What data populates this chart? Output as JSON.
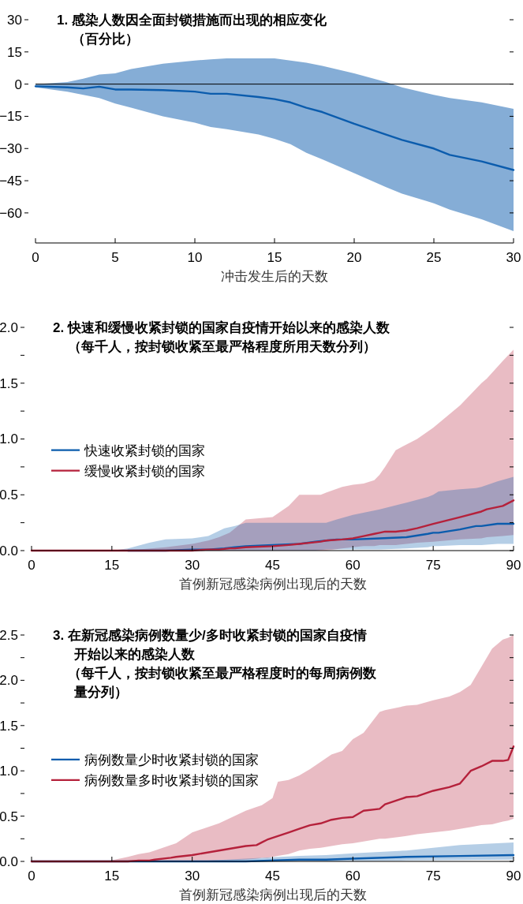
{
  "chart_data": [
    {
      "type": "line",
      "title": "1. 感染人数因全面封锁措施而出现的相应变化",
      "subtitle": "（百分比）",
      "xlabel": "冲击发生后的天数",
      "xlim": [
        0,
        30
      ],
      "xticks": [
        0,
        5,
        10,
        15,
        20,
        25,
        30
      ],
      "ylim": [
        -74,
        30
      ],
      "yticks": [
        -60,
        -45,
        -30,
        -15,
        0,
        15,
        30
      ],
      "legend": false,
      "ref_lines": [
        {
          "axis": "y",
          "value": 0,
          "color": "#000000"
        }
      ],
      "series": [
        {
          "color": "#0b5cad",
          "x": [
            0,
            2,
            3,
            4,
            5,
            6,
            8,
            10,
            11,
            12,
            14,
            15,
            16,
            17,
            18,
            20,
            22,
            23,
            25,
            26,
            28,
            30
          ],
          "values": [
            -1,
            -1.5,
            -2,
            -1.2,
            -2.5,
            -2.5,
            -2.8,
            -3.5,
            -4.5,
            -4.5,
            -6,
            -7,
            -8.5,
            -11,
            -13,
            -18.5,
            -23.5,
            -26,
            -30,
            -33,
            -36,
            -40
          ],
          "upper": [
            0,
            1,
            2.5,
            4.5,
            5,
            7,
            9.5,
            11,
            11.5,
            12,
            12,
            12,
            11,
            10,
            8.5,
            5,
            1,
            -1.5,
            -5,
            -6.5,
            -8.5,
            -11.5
          ],
          "lower": [
            -1.5,
            -3.5,
            -5,
            -6.5,
            -9,
            -11,
            -15,
            -18,
            -20,
            -21,
            -23.5,
            -25.5,
            -28,
            -32,
            -35,
            -41.5,
            -48,
            -51,
            -55.5,
            -58.5,
            -63,
            -68.5
          ]
        }
      ]
    },
    {
      "type": "line",
      "title": "2. 快速和缓慢收紧封锁的国家自疫情开始以来的感染人数",
      "subtitle": "（每千人，按封锁收紧至最严格程度所用天数分列）",
      "xlabel": "首例新冠感染病例出现后的天数",
      "xlim": [
        0,
        90
      ],
      "xticks": [
        0,
        15,
        30,
        45,
        60,
        75,
        90
      ],
      "ylim": [
        0,
        2
      ],
      "yticks": [
        {
          "value": 0,
          "label": "0.0"
        },
        {
          "value": 0.25,
          "label": null
        },
        0.5,
        {
          "value": 0.75,
          "label": null
        },
        {
          "value": 1,
          "label": "1.0"
        },
        {
          "value": 1.25,
          "label": null
        },
        1.5,
        {
          "value": 1.75,
          "label": null
        },
        {
          "value": 2,
          "label": "2.0"
        }
      ],
      "legend": "left",
      "series": [
        {
          "name": "快速收紧封锁的国家",
          "color": "#0b5cad",
          "x": [
            0,
            15,
            18,
            22,
            25,
            30,
            33,
            36,
            38,
            40,
            45,
            50,
            53,
            55,
            57,
            60,
            65,
            70,
            74,
            75,
            76,
            80,
            83,
            84,
            87,
            90
          ],
          "values": [
            null,
            null,
            0,
            0,
            0,
            0.01,
            0.01,
            0.02,
            0.03,
            0.04,
            0.05,
            0.06,
            0.08,
            0.09,
            0.1,
            0.1,
            0.11,
            0.12,
            0.15,
            0.16,
            0.16,
            0.19,
            0.22,
            0.22,
            0.24,
            0.24
          ],
          "upper": [
            0,
            0,
            0.02,
            0.07,
            0.1,
            0.11,
            0.13,
            0.2,
            0.22,
            0.25,
            0.25,
            0.25,
            0.25,
            0.25,
            0.28,
            0.32,
            0.37,
            0.43,
            0.48,
            0.5,
            0.53,
            0.55,
            0.56,
            0.57,
            0.62,
            0.66
          ],
          "lower": [
            0,
            0,
            0,
            0,
            0,
            0,
            0,
            0,
            0,
            0,
            0,
            0,
            0,
            0.01,
            0.01,
            0.01,
            0.01,
            0.02,
            0.03,
            0.04,
            0.04,
            0.05,
            0.05,
            0.05,
            0.06,
            0.06
          ]
        },
        {
          "name": "缓慢收紧封锁的国家",
          "color": "#b5213b",
          "x": [
            0,
            15,
            20,
            25,
            30,
            33,
            35,
            37,
            38,
            40,
            45,
            48,
            50,
            54,
            55,
            58,
            60,
            62,
            64,
            65,
            66,
            68,
            70,
            72,
            75,
            80,
            84,
            85,
            88,
            90
          ],
          "values": [
            0,
            0,
            0,
            0,
            0,
            0.01,
            0.01,
            0.02,
            0.02,
            0.03,
            0.04,
            0.05,
            0.06,
            0.08,
            0.09,
            0.1,
            0.11,
            0.13,
            0.15,
            0.16,
            0.17,
            0.17,
            0.18,
            0.2,
            0.24,
            0.3,
            0.35,
            0.37,
            0.4,
            0.45
          ],
          "upper": [
            0,
            0,
            0.01,
            0.03,
            0.06,
            0.09,
            0.12,
            0.16,
            0.2,
            0.28,
            0.3,
            0.4,
            0.5,
            0.5,
            0.52,
            0.57,
            0.59,
            0.6,
            0.63,
            0.68,
            0.75,
            0.9,
            0.95,
            1.0,
            1.1,
            1.3,
            1.5,
            1.54,
            1.7,
            1.8
          ],
          "lower": [
            0,
            0,
            0,
            0,
            0,
            0,
            0,
            0,
            0,
            0,
            0,
            0,
            0,
            0,
            0,
            0.02,
            0.03,
            0.04,
            0.04,
            0.05,
            0.05,
            0.05,
            0.06,
            0.07,
            0.08,
            0.1,
            0.11,
            0.12,
            0.13,
            0.14
          ]
        }
      ]
    },
    {
      "type": "line",
      "title": "3. 在新冠感染病例数量少/多时收紧封锁的国家自疫情开始以来的感染人数",
      "subtitle": "（每千人，按封锁收紧至最严格程度时的每周病例数量分列）",
      "xlabel": "首例新冠感染病例出现后的天数",
      "xlim": [
        0,
        90
      ],
      "xticks": [
        0,
        15,
        30,
        45,
        60,
        75,
        90
      ],
      "ylim": [
        0,
        2.5
      ],
      "yticks": [
        {
          "value": 0,
          "label": "0.0"
        },
        {
          "value": 0.25,
          "label": null
        },
        0.5,
        {
          "value": 0.75,
          "label": null
        },
        {
          "value": 1,
          "label": "1.0"
        },
        {
          "value": 1.25,
          "label": null
        },
        1.5,
        {
          "value": 1.75,
          "label": null
        },
        {
          "value": 2,
          "label": "2.0"
        },
        {
          "value": 2.25,
          "label": null
        },
        2.5
      ],
      "legend": "left",
      "series": [
        {
          "name": "病例数量少时收紧封锁的国家",
          "color": "#0b5cad",
          "x": [
            0,
            30,
            40,
            50,
            55,
            60,
            70,
            80,
            90
          ],
          "values": [
            0,
            0,
            0,
            0.02,
            0.02,
            0.03,
            0.05,
            0.06,
            0.07
          ],
          "upper": [
            0,
            0,
            0.03,
            0.06,
            0.07,
            0.09,
            0.12,
            0.18,
            0.21
          ],
          "lower": [
            0,
            0,
            0,
            0,
            0,
            0.005,
            0.01,
            0.015,
            0.02
          ]
        },
        {
          "name": "病例数量多时收紧封锁的国家",
          "color": "#b5213b",
          "x": [
            0,
            14,
            18,
            20,
            22,
            23,
            26,
            27,
            30,
            35,
            40,
            42,
            43,
            44,
            45,
            46,
            48,
            50,
            52,
            54,
            56,
            58,
            60,
            62,
            65,
            66,
            70,
            72,
            75,
            78,
            80,
            82,
            84,
            86,
            88,
            89,
            90
          ],
          "values": [
            0,
            0,
            0,
            0.01,
            0.01,
            0.02,
            0.04,
            0.05,
            0.07,
            0.12,
            0.17,
            0.18,
            0.21,
            0.24,
            0.26,
            0.28,
            0.32,
            0.36,
            0.4,
            0.42,
            0.46,
            0.48,
            0.49,
            0.56,
            0.58,
            0.63,
            0.71,
            0.72,
            0.78,
            0.82,
            0.86,
            1.0,
            1.05,
            1.11,
            1.11,
            1.12,
            1.27
          ],
          "upper": [
            0,
            0,
            0.05,
            0.08,
            0.1,
            0.12,
            0.18,
            0.2,
            0.32,
            0.42,
            0.56,
            0.6,
            0.62,
            0.66,
            0.7,
            0.88,
            0.9,
            0.95,
            1.02,
            1.1,
            1.18,
            1.22,
            1.35,
            1.42,
            1.65,
            1.67,
            1.72,
            1.73,
            1.78,
            1.82,
            1.87,
            1.95,
            2.15,
            2.35,
            2.45,
            2.47,
            2.5
          ],
          "lower": [
            0,
            0,
            0,
            0,
            0,
            0,
            0,
            0,
            0,
            0.01,
            0.02,
            0.03,
            0.04,
            0.04,
            0.05,
            0.06,
            0.08,
            0.12,
            0.14,
            0.15,
            0.17,
            0.19,
            0.2,
            0.22,
            0.25,
            0.25,
            0.28,
            0.3,
            0.32,
            0.34,
            0.36,
            0.38,
            0.4,
            0.41,
            0.44,
            0.45,
            0.47
          ]
        }
      ]
    }
  ]
}
